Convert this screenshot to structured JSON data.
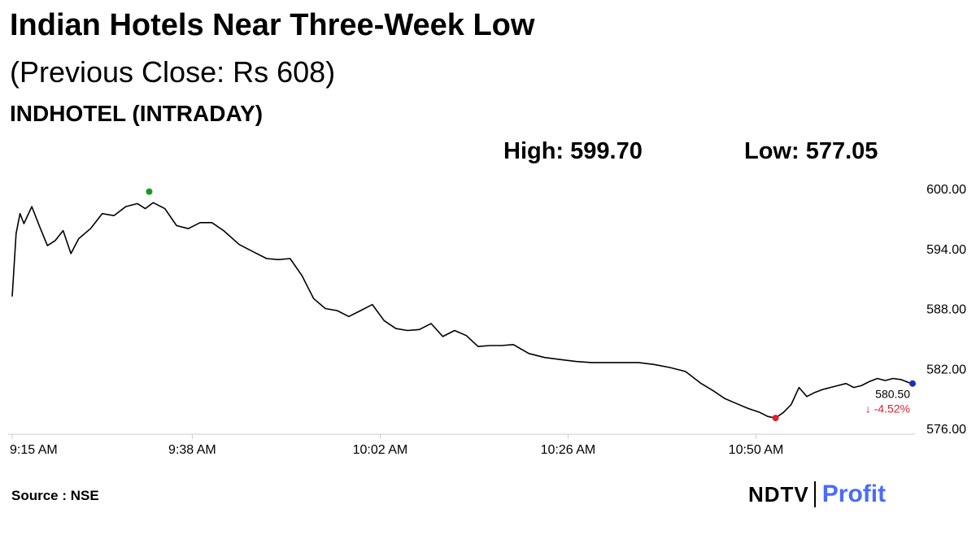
{
  "header": {
    "title": "Indian Hotels Near Three-Week Low",
    "subtitle": "(Previous Close: Rs 608)",
    "ticker": "INDHOTEL (INTRADAY)",
    "high_label": "High: 599.70",
    "low_label": "Low: 577.05"
  },
  "footer": {
    "source": "Source : NSE",
    "logo_ndtv": "NDTV",
    "logo_profit": "Profit"
  },
  "colors": {
    "line": "#000000",
    "high_marker": "#1a9a1a",
    "low_marker": "#e0202a",
    "last_marker": "#1a2fc9",
    "change_negative": "#e0202a",
    "brand_profit": "#4a6cf7"
  },
  "chart_data": {
    "type": "line",
    "title": "INDHOTEL (INTRADAY)",
    "xlabel": "",
    "ylabel": "",
    "x_ticks": [
      "9:15 AM",
      "9:38 AM",
      "10:02 AM",
      "10:26 AM",
      "10:50 AM"
    ],
    "y_ticks": [
      "600.00",
      "594.00",
      "588.00",
      "582.00",
      "576.00"
    ],
    "ylim": [
      576,
      600
    ],
    "xlim_minutes": [
      0,
      115
    ],
    "grid": false,
    "series": [
      {
        "minutes": [
          0,
          0.5,
          1,
          1.5,
          2.5,
          3.5,
          4.5,
          5.5,
          6.5,
          7.5,
          8.5,
          10,
          11.5,
          13,
          14.5,
          16,
          17,
          18,
          19.5,
          21,
          22.5,
          24,
          25.5,
          27,
          29,
          31,
          32.5,
          34,
          35.5,
          37,
          38.5,
          40,
          41.5,
          43,
          44.5,
          46,
          47.5,
          49,
          50.5,
          52,
          53.5,
          55,
          56.5,
          58,
          59.5,
          61,
          62.5,
          64,
          66,
          68,
          70,
          72,
          74,
          76,
          78,
          80,
          82,
          84,
          86,
          88,
          89.5,
          91,
          92.5,
          94,
          95.5,
          96.5,
          97.5,
          98.5,
          99.5,
          100.5,
          101.5,
          102.5,
          103.5,
          104.5,
          105.5,
          106.5,
          107.5,
          108.5,
          109.5,
          110.5,
          111.5,
          112.5,
          113.5,
          114.5,
          115
        ],
        "values": [
          589.2,
          595.5,
          597.5,
          596.5,
          598.2,
          596.2,
          594.3,
          594.8,
          595.8,
          593.5,
          595.0,
          596.0,
          597.5,
          597.3,
          598.2,
          598.5,
          598.0,
          598.6,
          598.0,
          596.3,
          596.0,
          596.6,
          596.6,
          595.8,
          594.4,
          593.6,
          593.0,
          592.9,
          593.0,
          591.3,
          589.0,
          588.0,
          587.8,
          587.2,
          587.8,
          588.4,
          586.8,
          586.0,
          585.8,
          585.9,
          586.5,
          585.2,
          585.8,
          585.3,
          584.2,
          584.3,
          584.3,
          584.4,
          583.5,
          583.1,
          582.9,
          582.7,
          582.6,
          582.6,
          582.6,
          582.6,
          582.4,
          582.1,
          581.7,
          580.5,
          579.8,
          579.0,
          578.5,
          578.0,
          577.6,
          577.2,
          577.05,
          577.6,
          578.4,
          580.1,
          579.2,
          579.6,
          579.9,
          580.1,
          580.3,
          580.5,
          580.1,
          580.3,
          580.7,
          581.0,
          580.8,
          581.0,
          580.9,
          580.6,
          580.5
        ],
        "high_point": {
          "minute": 17.5,
          "value": 599.7
        },
        "low_point": {
          "minute": 97.5,
          "value": 577.05
        },
        "last_point": {
          "minute": 115,
          "value": 580.5
        }
      }
    ],
    "annotations": {
      "last_price": "580.50",
      "change": "↓ -4.52%"
    }
  }
}
